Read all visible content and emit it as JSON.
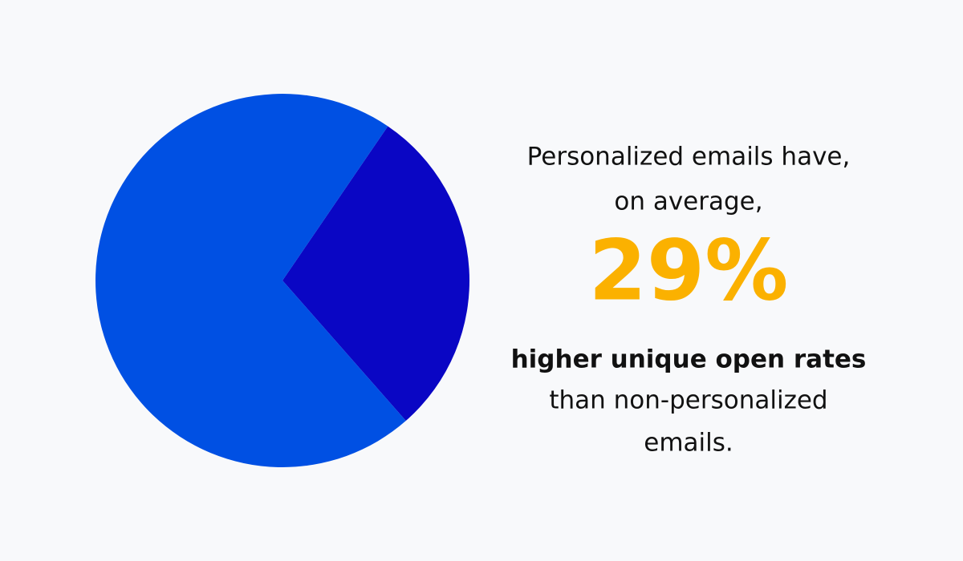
{
  "chart_data": {
    "type": "pie",
    "values": [
      29,
      71
    ],
    "colors": [
      "#0a06c4",
      "#0050e3"
    ],
    "annotations": [
      "Personalized emails have,",
      "on average,",
      "29%",
      "higher unique open rates",
      "than non-personalized",
      "emails."
    ]
  }
}
